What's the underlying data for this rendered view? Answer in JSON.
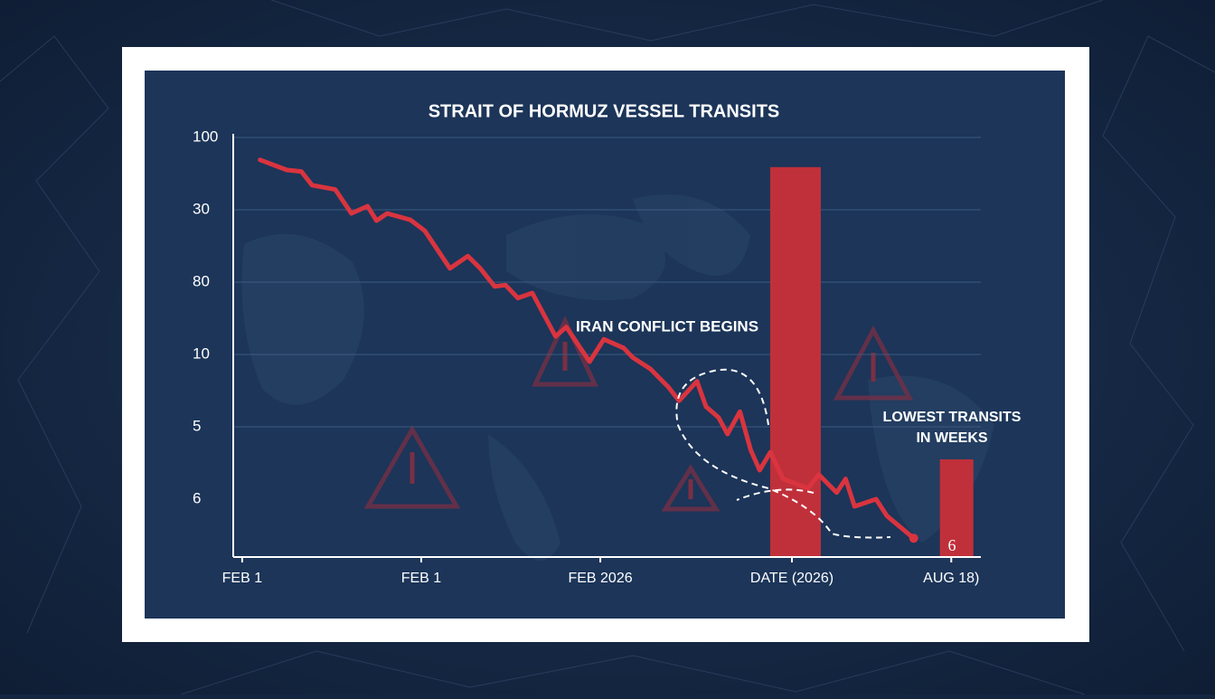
{
  "chart_data": {
    "type": "line",
    "title": "STRAIT OF HORMUZ VESSEL TRANSITS",
    "xlim": [
      -0.05,
      4.1
    ],
    "ylim": [
      -0.8,
      5
    ],
    "xticks": [
      {
        "value": 0,
        "label": "FEB 1"
      },
      {
        "value": 1,
        "label": "FEB 1"
      },
      {
        "value": 2,
        "label": "FEB 2026"
      },
      {
        "value": 3.07,
        "label": "DATE (2026)"
      },
      {
        "value": 3.96,
        "label": "AUG 18)"
      }
    ],
    "yticks": [
      {
        "value": 0,
        "label": "6"
      },
      {
        "value": 1,
        "label": "5"
      },
      {
        "value": 2,
        "label": "10"
      },
      {
        "value": 3,
        "label": "80"
      },
      {
        "value": 4,
        "label": "30"
      },
      {
        "value": 5,
        "label": "100"
      }
    ],
    "grid": true,
    "series": [
      {
        "color": "#d9343f",
        "x": [
          0.1,
          0.25,
          0.33,
          0.39,
          0.52,
          0.61,
          0.7,
          0.75,
          0.81,
          0.94,
          1.02,
          1.16,
          1.26,
          1.33,
          1.41,
          1.47,
          1.54,
          1.62,
          1.75,
          1.81,
          1.94,
          2.02,
          2.13,
          2.18,
          2.28,
          2.38,
          2.44,
          2.54,
          2.59,
          2.66,
          2.71,
          2.78,
          2.84,
          2.89,
          2.95,
          3.02,
          3.16,
          3.22,
          3.32,
          3.37,
          3.42,
          3.54,
          3.6,
          3.75
        ],
        "values": [
          4.69,
          4.55,
          4.53,
          4.34,
          4.28,
          3.95,
          4.05,
          3.85,
          3.95,
          3.86,
          3.71,
          3.19,
          3.36,
          3.19,
          2.94,
          2.96,
          2.78,
          2.85,
          2.25,
          2.38,
          1.9,
          2.21,
          2.09,
          1.96,
          1.8,
          1.55,
          1.36,
          1.63,
          1.28,
          1.13,
          0.9,
          1.21,
          0.68,
          0.4,
          0.65,
          0.28,
          0.15,
          0.34,
          0.09,
          0.28,
          -0.1,
          0.0,
          -0.23,
          -0.54
        ]
      }
    ],
    "bars": {
      "color": "#c0303a",
      "x": [
        3.09,
        3.99
      ],
      "values": [
        4.59,
        0.55
      ]
    },
    "annotations": [
      "IRAN CONFLICT BEGINS",
      "LOWEST TRANSITS",
      "IN WEEKS",
      "6"
    ]
  }
}
